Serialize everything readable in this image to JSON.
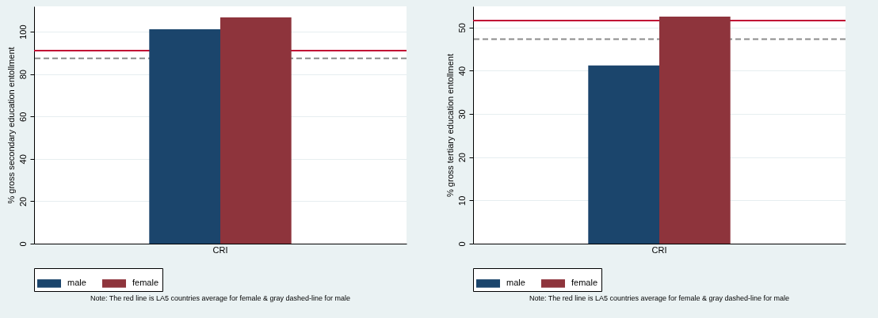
{
  "chart_data": [
    {
      "type": "bar",
      "ylabel": "% gross secondary education entollment",
      "categories": [
        "CRI"
      ],
      "series": [
        {
          "name": "male",
          "color": "#1b456c",
          "values": [
            101.2
          ]
        },
        {
          "name": "female",
          "color": "#8e343c",
          "values": [
            106.8
          ]
        }
      ],
      "ylim": [
        0,
        112
      ],
      "yticks": [
        0,
        20,
        40,
        60,
        80,
        100
      ],
      "grid": "y",
      "legend": "bottom",
      "ref_lines": [
        {
          "axis": "y",
          "value": 91.1,
          "color": "#c10534",
          "line_style": "solid"
        },
        {
          "axis": "y",
          "value": 87.5,
          "color": "#8c8c8c",
          "line_style": "dashed"
        }
      ],
      "annotations": [
        "Note: The red line is LA5 countries average for female & gray dashed-line for male"
      ]
    },
    {
      "type": "bar",
      "ylabel": "% gross tertiary education entollment",
      "categories": [
        "CRI"
      ],
      "series": [
        {
          "name": "male",
          "color": "#1b456c",
          "values": [
            41.2
          ]
        },
        {
          "name": "female",
          "color": "#8e343c",
          "values": [
            52.5
          ]
        }
      ],
      "ylim": [
        0,
        54.9
      ],
      "yticks": [
        0,
        10,
        20,
        30,
        40,
        50
      ],
      "grid": "y",
      "legend": "bottom",
      "ref_lines": [
        {
          "axis": "y",
          "value": 51.6,
          "color": "#c10534",
          "line_style": "solid"
        },
        {
          "axis": "y",
          "value": 47.3,
          "color": "#8c8c8c",
          "line_style": "dashed"
        }
      ],
      "annotations": [
        "Note: The red line is LA5 countries average for female & gray dashed-line for male"
      ]
    }
  ]
}
